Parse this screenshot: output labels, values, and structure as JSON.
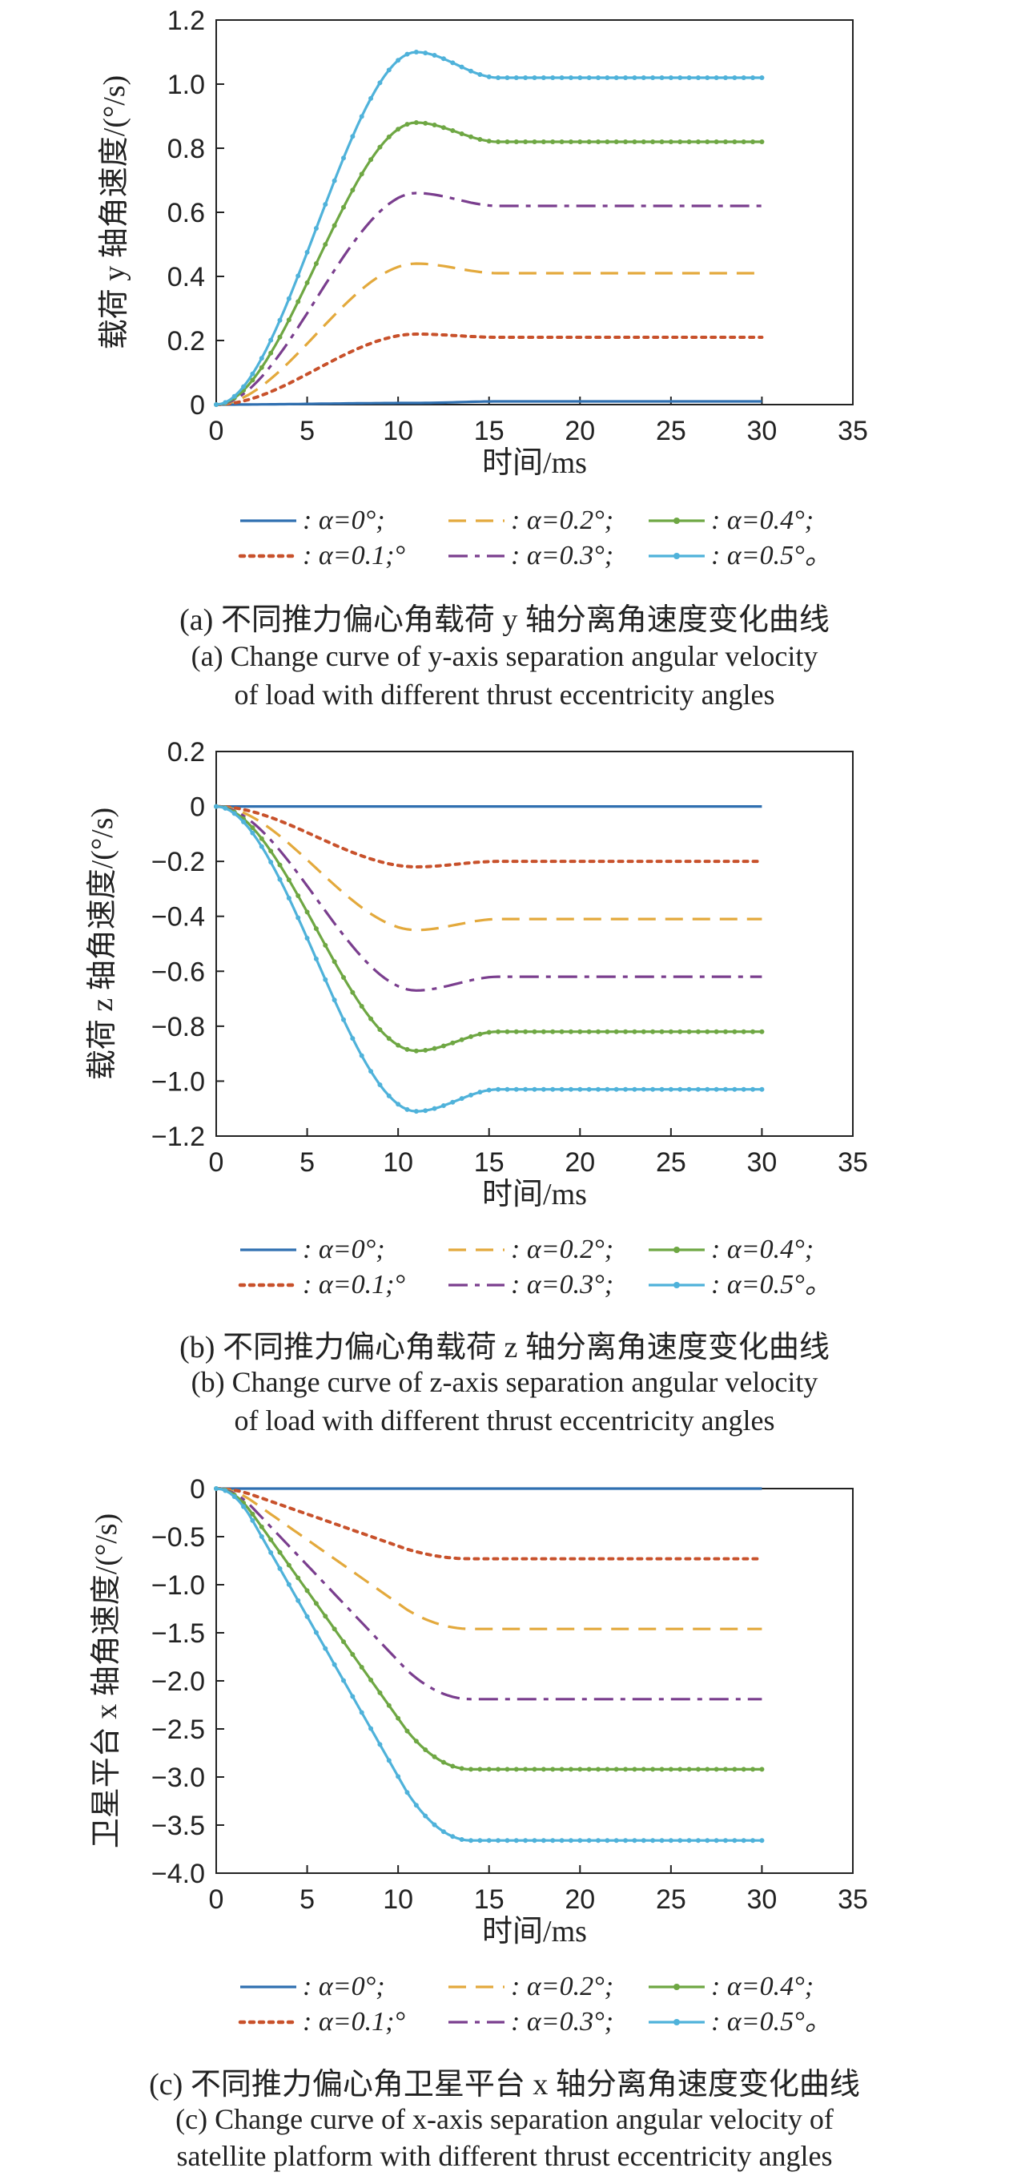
{
  "colors": {
    "a0": "#2f6fb0",
    "a01": "#c8512b",
    "a02": "#e3a93c",
    "a03": "#7a3e8e",
    "a04": "#6ea743",
    "a05": "#4fb2da"
  },
  "legend": [
    {
      "key": "a0",
      "label": ": α=0°;",
      "style": "solid",
      "marker": false
    },
    {
      "key": "a02",
      "label": ": α=0.2°;",
      "style": "dash",
      "marker": false
    },
    {
      "key": "a04",
      "label": ": α=0.4°;",
      "style": "solid",
      "marker": true
    },
    {
      "key": "a01",
      "label": ": α=0.1;°",
      "style": "dot",
      "marker": false
    },
    {
      "key": "a03",
      "label": ": α=0.3°;",
      "style": "dashdot",
      "marker": false
    },
    {
      "key": "a05",
      "label": ": α=0.5°。",
      "style": "solid",
      "marker": true
    }
  ],
  "captions": {
    "a": {
      "cn": "(a) 不同推力偏心角载荷 y 轴分离角速度变化曲线",
      "en1": "(a) Change curve of y-axis separation angular velocity",
      "en2": "of load with different thrust eccentricity angles"
    },
    "b": {
      "cn": "(b) 不同推力偏心角载荷 z 轴分离角速度变化曲线",
      "en1": "(b) Change curve of z-axis separation angular velocity",
      "en2": "of load with different thrust eccentricity angles"
    },
    "c": {
      "cn": "(c) 不同推力偏心角卫星平台 x 轴分离角速度变化曲线",
      "en1": "(c) Change curve of x-axis separation angular velocity of",
      "en2": "satellite platform with different thrust eccentricity angles"
    }
  },
  "chart_data": [
    {
      "type": "line",
      "xlabel": "时间/ms",
      "ylabel": "载荷 y 轴角速度/(°/s)",
      "xlim": [
        0,
        35
      ],
      "ylim": [
        0,
        1.2
      ],
      "xticks": [
        0,
        5,
        10,
        15,
        20,
        25,
        30,
        35
      ],
      "yticks": [
        0,
        0.2,
        0.4,
        0.6,
        0.8,
        1.0,
        1.2
      ],
      "ytick_labels": [
        "0",
        "0.2",
        "0.4",
        "0.6",
        "0.8",
        "1.0",
        "1.2"
      ],
      "curve": "overshoot",
      "series": [
        {
          "key": "a0",
          "peak": 0.005,
          "final": 0.01
        },
        {
          "key": "a01",
          "peak": 0.22,
          "final": 0.21
        },
        {
          "key": "a02",
          "peak": 0.44,
          "final": 0.41
        },
        {
          "key": "a03",
          "peak": 0.66,
          "final": 0.62
        },
        {
          "key": "a04",
          "peak": 0.88,
          "final": 0.82
        },
        {
          "key": "a05",
          "peak": 1.1,
          "final": 1.02
        }
      ]
    },
    {
      "type": "line",
      "xlabel": "时间/ms",
      "ylabel": "载荷 z 轴角速度/(°/s)",
      "xlim": [
        0,
        35
      ],
      "ylim": [
        -1.2,
        0.2
      ],
      "xticks": [
        0,
        5,
        10,
        15,
        20,
        25,
        30,
        35
      ],
      "yticks": [
        -1.2,
        -1.0,
        -0.8,
        -0.6,
        -0.4,
        -0.2,
        0,
        0.2
      ],
      "ytick_labels": [
        "−1.2",
        "−1.0",
        "−0.8",
        "−0.6",
        "−0.4",
        "−0.2",
        "0",
        "0.2"
      ],
      "curve": "overshoot",
      "series": [
        {
          "key": "a0",
          "peak": 0.0,
          "final": 0.0
        },
        {
          "key": "a01",
          "peak": -0.22,
          "final": -0.2
        },
        {
          "key": "a02",
          "peak": -0.45,
          "final": -0.41
        },
        {
          "key": "a03",
          "peak": -0.67,
          "final": -0.62
        },
        {
          "key": "a04",
          "peak": -0.89,
          "final": -0.82
        },
        {
          "key": "a05",
          "peak": -1.11,
          "final": -1.03
        }
      ]
    },
    {
      "type": "line",
      "xlabel": "时间/ms",
      "ylabel": "卫星平台 x 轴角速度/(°/s)",
      "xlim": [
        0,
        35
      ],
      "ylim": [
        -4.0,
        0
      ],
      "xticks": [
        0,
        5,
        10,
        15,
        20,
        25,
        30,
        35
      ],
      "yticks": [
        -4.0,
        -3.5,
        -3.0,
        -2.5,
        -2.0,
        -1.5,
        -1.0,
        -0.5,
        0
      ],
      "ytick_labels": [
        "−4.0",
        "−3.5",
        "−3.0",
        "−2.5",
        "−2.0",
        "−1.5",
        "−1.0",
        "−0.5",
        "0"
      ],
      "curve": "ramp",
      "series": [
        {
          "key": "a0",
          "peak": 0.0,
          "final": 0.0
        },
        {
          "key": "a01",
          "peak": -0.73,
          "final": -0.73
        },
        {
          "key": "a02",
          "peak": -1.46,
          "final": -1.46
        },
        {
          "key": "a03",
          "peak": -2.19,
          "final": -2.19
        },
        {
          "key": "a04",
          "peak": -2.92,
          "final": -2.92
        },
        {
          "key": "a05",
          "peak": -3.66,
          "final": -3.66
        }
      ]
    }
  ]
}
